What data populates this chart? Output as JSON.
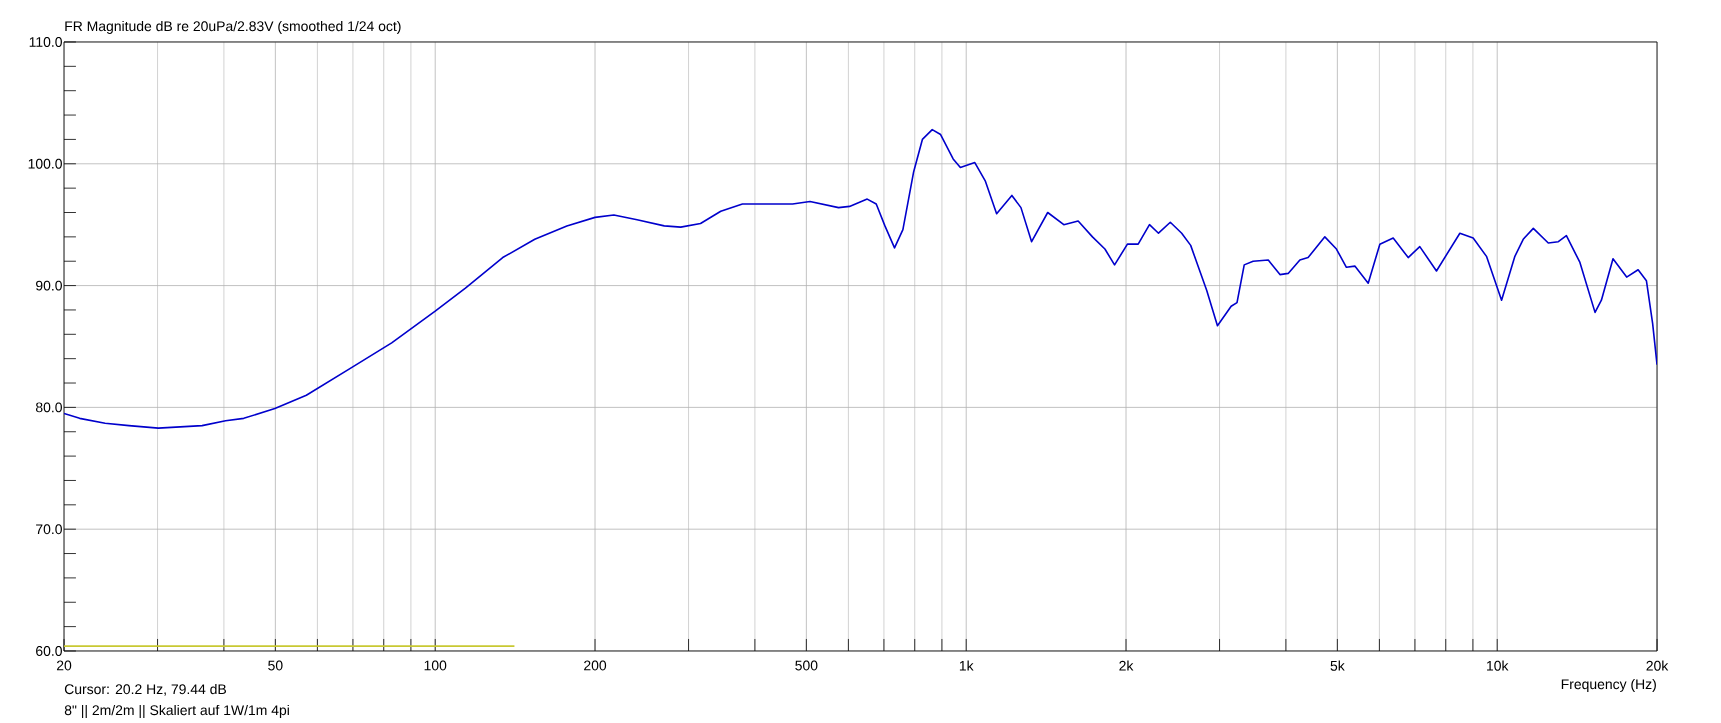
{
  "chart_data": {
    "type": "line",
    "title": "FR Magnitude dB re 20uPa/2.83V (smoothed 1/24 oct)",
    "xlabel": "Frequency (Hz)",
    "annotations": [
      "Cursor: 20.2 Hz, 79.44 dB",
      "8\" || 2m/2m || Skaliert auf 1W/1m 4pi"
    ],
    "log": "x",
    "grid": true,
    "marker": "none",
    "line_style": "solid",
    "xlim": [
      20,
      20000
    ],
    "ylim": [
      60,
      110
    ],
    "xticks": [
      20,
      {
        "value": 30,
        "label": null
      },
      {
        "value": 40,
        "label": null
      },
      50,
      {
        "value": 60,
        "label": null
      },
      {
        "value": 70,
        "label": null
      },
      {
        "value": 80,
        "label": null
      },
      {
        "value": 90,
        "label": null
      },
      100,
      200,
      {
        "value": 300,
        "label": null
      },
      {
        "value": 400,
        "label": null
      },
      500,
      {
        "value": 600,
        "label": null
      },
      {
        "value": 700,
        "label": null
      },
      {
        "value": 800,
        "label": null
      },
      {
        "value": 900,
        "label": null
      },
      {
        "value": 1000,
        "label": "1k"
      },
      {
        "value": 2000,
        "label": "2k"
      },
      {
        "value": 3000,
        "label": null
      },
      {
        "value": 4000,
        "label": null
      },
      {
        "value": 5000,
        "label": "5k"
      },
      {
        "value": 6000,
        "label": null
      },
      {
        "value": 7000,
        "label": null
      },
      {
        "value": 8000,
        "label": null
      },
      {
        "value": 9000,
        "label": null
      },
      {
        "value": 10000,
        "label": "10k"
      },
      {
        "value": 20000,
        "label": "20k"
      }
    ],
    "yticks": [
      {
        "value": 60,
        "label": "60.0"
      },
      {
        "value": 62,
        "label": null
      },
      {
        "value": 64,
        "label": null
      },
      {
        "value": 66,
        "label": null
      },
      {
        "value": 68,
        "label": null
      },
      {
        "value": 70,
        "label": "70.0"
      },
      {
        "value": 72,
        "label": null
      },
      {
        "value": 74,
        "label": null
      },
      {
        "value": 76,
        "label": null
      },
      {
        "value": 78,
        "label": null
      },
      {
        "value": 80,
        "label": "80.0"
      },
      {
        "value": 82,
        "label": null
      },
      {
        "value": 84,
        "label": null
      },
      {
        "value": 86,
        "label": null
      },
      {
        "value": 88,
        "label": null
      },
      {
        "value": 90,
        "label": "90.0"
      },
      {
        "value": 92,
        "label": null
      },
      {
        "value": 94,
        "label": null
      },
      {
        "value": 96,
        "label": null
      },
      {
        "value": 98,
        "label": null
      },
      {
        "value": 100,
        "label": "100.0"
      },
      {
        "value": 102,
        "label": null
      },
      {
        "value": 104,
        "label": null
      },
      {
        "value": 106,
        "label": null
      },
      {
        "value": 108,
        "label": null
      },
      {
        "value": 110,
        "label": "110.0"
      }
    ],
    "series": [
      {
        "color": "#0000cc",
        "x": [
          20,
          21.4,
          23.9,
          26.5,
          30.1,
          36.4,
          40.3,
          43.6,
          49.9,
          57.2,
          69.2,
          82.8,
          100,
          114,
          134,
          154,
          177,
          200,
          217,
          240,
          270,
          290,
          316,
          345,
          379,
          406,
          471,
          508,
          575,
          603,
          651,
          677,
          703,
          733,
          760,
          796,
          827,
          863,
          895,
          945,
          975,
          1038,
          1086,
          1141,
          1219,
          1268,
          1328,
          1424,
          1527,
          1625,
          1729,
          1825,
          1903,
          2012,
          2108,
          2214,
          2302,
          2423,
          2546,
          2647,
          2838,
          2973,
          3155,
          3236,
          3339,
          3470,
          3706,
          3899,
          4040,
          4250,
          4404,
          4736,
          4980,
          5200,
          5394,
          5716,
          6012,
          6370,
          6799,
          7149,
          7686,
          8505,
          9010,
          9546,
          10191,
          10797,
          11194,
          11695,
          12480,
          13035,
          13499,
          14315,
          15284,
          15713,
          16523,
          17531,
          18425,
          19101,
          19621,
          20000
        ],
        "values": [
          79.5,
          79.1,
          78.7,
          78.5,
          78.3,
          78.5,
          78.9,
          79.1,
          79.9,
          81.0,
          83.2,
          85.3,
          87.9,
          89.8,
          92.3,
          93.8,
          94.9,
          95.6,
          95.8,
          95.4,
          94.9,
          94.8,
          95.1,
          96.1,
          96.7,
          96.7,
          96.7,
          96.9,
          96.4,
          96.5,
          97.1,
          96.7,
          94.9,
          93.1,
          94.6,
          99.3,
          102.0,
          102.8,
          102.4,
          100.4,
          99.7,
          100.1,
          98.6,
          95.9,
          97.4,
          96.4,
          93.6,
          96.0,
          95.0,
          95.3,
          94.0,
          93.0,
          91.7,
          93.4,
          93.4,
          95.0,
          94.3,
          95.2,
          94.3,
          93.3,
          89.6,
          86.7,
          88.3,
          88.6,
          91.7,
          92.0,
          92.1,
          90.9,
          91.0,
          92.1,
          92.3,
          94.0,
          93.0,
          91.5,
          91.6,
          90.2,
          93.4,
          93.9,
          92.3,
          93.2,
          91.2,
          94.3,
          93.9,
          92.4,
          88.8,
          92.4,
          93.8,
          94.7,
          93.5,
          93.6,
          94.1,
          91.9,
          87.8,
          88.8,
          92.2,
          90.7,
          91.3,
          90.4,
          86.9,
          83.5
        ]
      },
      {
        "color": "#c8c832",
        "x": [
          20,
          141
        ],
        "values": [
          60.4,
          60.4
        ]
      }
    ]
  }
}
